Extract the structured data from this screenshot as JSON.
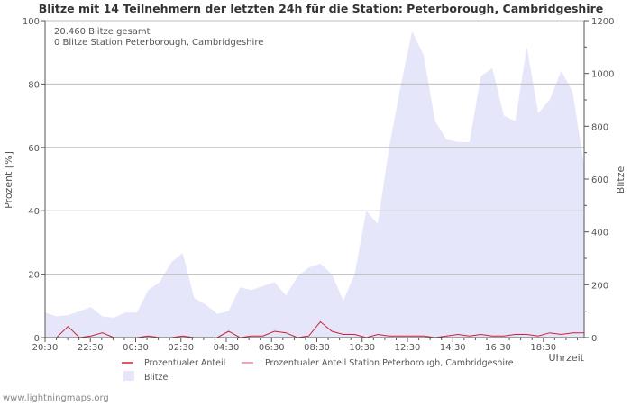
{
  "chart_data": {
    "type": "area",
    "title": "Blitze mit 14 Teilnehmern der letzten 24h für die Station: Peterborough, Cambridgeshire",
    "annotations": [
      "20.460 Blitze gesamt",
      "0 Blitze Station Peterborough, Cambridgeshire"
    ],
    "xlabel": "Uhrzeit",
    "ylabel_left": "Prozent   [%]",
    "ylabel_right": "Blitze",
    "ylim_left": [
      0,
      100
    ],
    "ylim_right": [
      0,
      1200
    ],
    "yticks_left": [
      "0",
      "20",
      "40",
      "60",
      "80",
      "100"
    ],
    "yticks_right": [
      "0",
      "200",
      "400",
      "600",
      "800",
      "1000",
      "1200"
    ],
    "xtick_labels": [
      "20:30",
      "22:30",
      "00:30",
      "02:30",
      "04:30",
      "06:30",
      "08:30",
      "10:30",
      "12:30",
      "14:30",
      "16:30",
      "18:30"
    ],
    "legend": [
      {
        "label": "Prozentualer Anteil",
        "color": "#cc2233",
        "kind": "line"
      },
      {
        "label": "Prozentualer Anteil Station Peterborough, Cambridgeshire",
        "color": "#ee8899",
        "kind": "line"
      },
      {
        "label": "Blitze",
        "color": "#e6e6fa",
        "kind": "area"
      }
    ],
    "series": [
      {
        "name": "Blitze",
        "axis": "right",
        "color": "#e6e6fa",
        "values": [
          95,
          80,
          85,
          100,
          115,
          80,
          75,
          95,
          95,
          180,
          210,
          285,
          320,
          150,
          125,
          90,
          100,
          190,
          180,
          195,
          210,
          160,
          230,
          265,
          280,
          240,
          140,
          240,
          480,
          430,
          720,
          950,
          1160,
          1070,
          820,
          750,
          740,
          740,
          990,
          1020,
          840,
          820,
          1100,
          850,
          900,
          1010,
          930,
          650
        ]
      },
      {
        "name": "Prozentualer Anteil",
        "axis": "left",
        "color": "#cc2233",
        "values": [
          0,
          0,
          3.5,
          0,
          0.5,
          1.5,
          0,
          0,
          0,
          0.5,
          0,
          0,
          0.5,
          0,
          0,
          0,
          2,
          0,
          0.5,
          0.5,
          2,
          1.5,
          0,
          0.5,
          5,
          2,
          1,
          1,
          0,
          1,
          0.5,
          0.5,
          0.5,
          0.5,
          0,
          0.5,
          1,
          0.5,
          1,
          0.5,
          0.5,
          1,
          1,
          0.5,
          1.5,
          1,
          1.5,
          1.5
        ]
      }
    ]
  },
  "footer": {
    "source": "www.lightningmaps.org"
  }
}
